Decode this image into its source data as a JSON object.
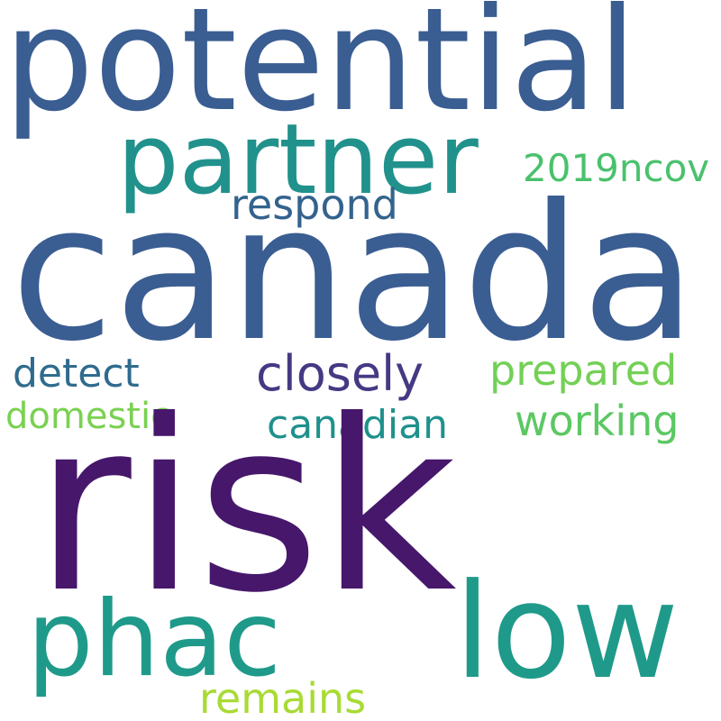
{
  "wordcloud": {
    "background": "#ffffff",
    "words": [
      {
        "key": "risk",
        "text": "risk",
        "color": "#46176b"
      },
      {
        "key": "canada",
        "text": "canada",
        "color": "#3a5d92"
      },
      {
        "key": "potential",
        "text": "potential",
        "color": "#3a5d92"
      },
      {
        "key": "partner",
        "text": "partner",
        "color": "#21918c"
      },
      {
        "key": "phac",
        "text": "phac",
        "color": "#1f9a8a"
      },
      {
        "key": "low",
        "text": "low",
        "color": "#1f9a8a"
      },
      {
        "key": "closely",
        "text": "closely",
        "color": "#443a83"
      },
      {
        "key": "prepared",
        "text": "prepared",
        "color": "#73d055"
      },
      {
        "key": "working",
        "text": "working",
        "color": "#5cc863"
      },
      {
        "key": "canadian",
        "text": "canadian",
        "color": "#1f918c"
      },
      {
        "key": "detect",
        "text": "detect",
        "color": "#2f6b8e"
      },
      {
        "key": "domestic",
        "text": "domestic",
        "color": "#7ad151"
      },
      {
        "key": "respond",
        "text": "respond",
        "color": "#33638d"
      },
      {
        "key": "ncov",
        "text": "2019ncov",
        "color": "#4ac16d"
      },
      {
        "key": "remains",
        "text": "remains",
        "color": "#a8db34"
      }
    ]
  }
}
